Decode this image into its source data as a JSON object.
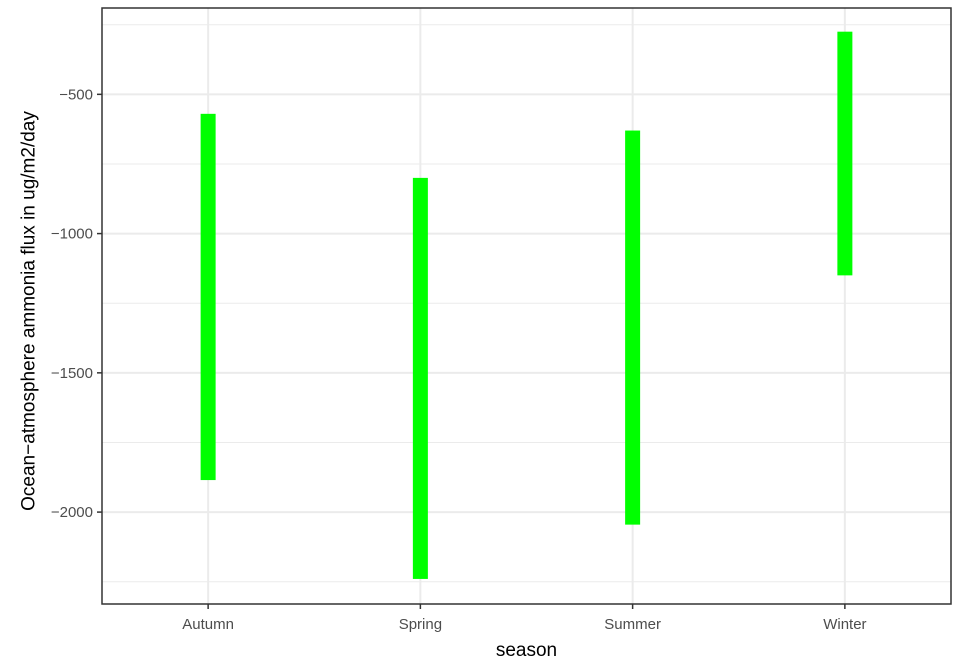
{
  "chart_data": {
    "type": "range-bar",
    "xlabel": "season",
    "ylabel": "Ocean−atmosphere ammonia flux in ug/m2/day",
    "categories": [
      "Autumn",
      "Spring",
      "Summer",
      "Winter"
    ],
    "ranges": [
      {
        "category": "Autumn",
        "low": -1885,
        "high": -570
      },
      {
        "category": "Spring",
        "low": -2240,
        "high": -800
      },
      {
        "category": "Summer",
        "low": -2045,
        "high": -630
      },
      {
        "category": "Winter",
        "low": -1150,
        "high": -275
      }
    ],
    "y_ticks": [
      -2000,
      -1500,
      -1000,
      -500
    ],
    "y_tick_labels": [
      "−2000",
      "−1500",
      "−1000",
      "−500"
    ],
    "ylim": [
      -2330,
      -190
    ],
    "bar_color": "#00ff00",
    "grid_color": "#ebebeb",
    "grid": true,
    "legend": "none"
  }
}
